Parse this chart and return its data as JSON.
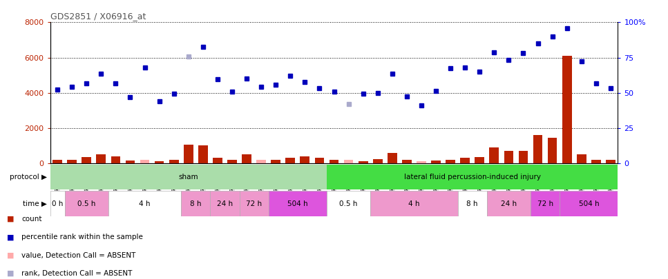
{
  "title": "GDS2851 / X06916_at",
  "samples": [
    "GSM44478",
    "GSM44496",
    "GSM44513",
    "GSM44488",
    "GSM44489",
    "GSM44494",
    "GSM44509",
    "GSM44486",
    "GSM44511",
    "GSM44528",
    "GSM44529",
    "GSM44467",
    "GSM44530",
    "GSM44490",
    "GSM44508",
    "GSM44483",
    "GSM44485",
    "GSM44495",
    "GSM44507",
    "GSM44473",
    "GSM44480",
    "GSM44492",
    "GSM44500",
    "GSM44533",
    "GSM44466",
    "GSM44498",
    "GSM44667",
    "GSM44491",
    "GSM44531",
    "GSM44532",
    "GSM44477",
    "GSM44482",
    "GSM44493",
    "GSM44484",
    "GSM44520",
    "GSM44549",
    "GSM44471",
    "GSM44481",
    "GSM44497"
  ],
  "count_values": [
    200,
    180,
    350,
    500,
    400,
    150,
    200,
    120,
    200,
    1050,
    1000,
    300,
    200,
    500,
    200,
    200,
    300,
    400,
    300,
    200,
    180,
    100,
    250,
    600,
    200,
    100,
    150,
    200,
    300,
    350,
    900,
    700,
    700,
    1600,
    1450,
    6100,
    500,
    200,
    200
  ],
  "count_absent": [
    false,
    false,
    false,
    false,
    false,
    false,
    true,
    false,
    false,
    false,
    false,
    false,
    false,
    false,
    true,
    false,
    false,
    false,
    false,
    false,
    true,
    false,
    false,
    false,
    false,
    true,
    false,
    false,
    false,
    false,
    false,
    false,
    false,
    false,
    false,
    false,
    false,
    false,
    false
  ],
  "rank_values": [
    4200,
    4350,
    4550,
    5100,
    4550,
    3750,
    5450,
    3500,
    3950,
    6050,
    6600,
    4750,
    4050,
    4800,
    4350,
    4450,
    4950,
    4600,
    4250,
    4050,
    3350,
    3950,
    4000,
    5100,
    3800,
    3300,
    4100,
    5400,
    5450,
    5200,
    6300,
    5850,
    6250,
    6800,
    7200,
    7650,
    5800,
    4550,
    4250
  ],
  "rank_absent": [
    false,
    false,
    false,
    false,
    false,
    false,
    false,
    false,
    false,
    true,
    false,
    false,
    false,
    false,
    false,
    false,
    false,
    false,
    false,
    false,
    true,
    false,
    false,
    false,
    false,
    false,
    false,
    false,
    false,
    false,
    false,
    false,
    false,
    false,
    false,
    false,
    false,
    false,
    false
  ],
  "protocol_groups": [
    {
      "label": "sham",
      "start": 0,
      "end": 18,
      "color": "#AADDAA"
    },
    {
      "label": "lateral fluid percussion-induced injury",
      "start": 19,
      "end": 38,
      "color": "#44DD44"
    }
  ],
  "time_groups": [
    {
      "label": "0 h",
      "start": 0,
      "end": 0,
      "color": "#FFFFFF"
    },
    {
      "label": "0.5 h",
      "start": 1,
      "end": 3,
      "color": "#EE99CC"
    },
    {
      "label": "4 h",
      "start": 4,
      "end": 8,
      "color": "#FFFFFF"
    },
    {
      "label": "8 h",
      "start": 9,
      "end": 10,
      "color": "#EE99CC"
    },
    {
      "label": "24 h",
      "start": 11,
      "end": 12,
      "color": "#EE99CC"
    },
    {
      "label": "72 h",
      "start": 13,
      "end": 14,
      "color": "#EE99CC"
    },
    {
      "label": "504 h",
      "start": 15,
      "end": 18,
      "color": "#DD55DD"
    },
    {
      "label": "0.5 h",
      "start": 19,
      "end": 21,
      "color": "#FFFFFF"
    },
    {
      "label": "4 h",
      "start": 22,
      "end": 27,
      "color": "#EE99CC"
    },
    {
      "label": "8 h",
      "start": 28,
      "end": 29,
      "color": "#FFFFFF"
    },
    {
      "label": "24 h",
      "start": 30,
      "end": 32,
      "color": "#EE99CC"
    },
    {
      "label": "72 h",
      "start": 33,
      "end": 34,
      "color": "#DD55DD"
    },
    {
      "label": "504 h",
      "start": 35,
      "end": 38,
      "color": "#DD55DD"
    }
  ],
  "ylim_left": [
    0,
    8000
  ],
  "ylim_right": [
    0,
    100
  ],
  "yticks_left": [
    0,
    2000,
    4000,
    6000,
    8000
  ],
  "yticks_right": [
    0,
    25,
    50,
    75,
    100
  ],
  "bar_color": "#BB2200",
  "bar_absent_color": "#FFAAAA",
  "dot_color": "#0000BB",
  "dot_absent_color": "#AAAACC",
  "background_color": "#FFFFFF",
  "plot_bg_color": "#FFFFFF",
  "xticklabel_bg": "#DDDDDD"
}
